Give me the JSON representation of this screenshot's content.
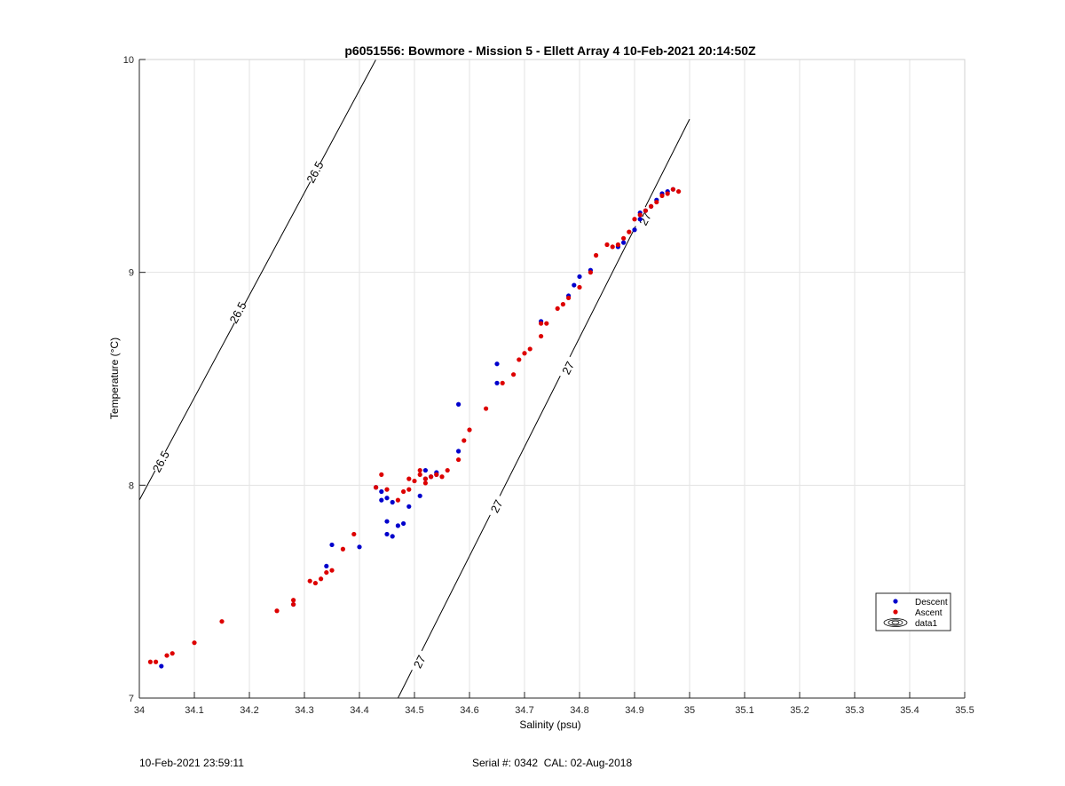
{
  "footer": {
    "timestamp": "10-Feb-2021 23:59:11",
    "serial_cal": "Serial #: 0342  CAL: 02-Aug-2018"
  },
  "chart_data": {
    "type": "scatter",
    "title": "p6051556: Bowmore - Mission 5 - Ellett Array 4 10-Feb-2021 20:14:50Z",
    "xlabel": "Salinity (psu)",
    "ylabel": "Temperature (°C)",
    "xlim": [
      34,
      35.5
    ],
    "ylim": [
      7,
      10
    ],
    "x_ticks": [
      "34",
      "34.1",
      "34.2",
      "34.3",
      "34.4",
      "34.5",
      "34.6",
      "34.7",
      "34.8",
      "34.9",
      "35",
      "35.1",
      "35.2",
      "35.3",
      "35.4",
      "35.5"
    ],
    "y_ticks": [
      "7",
      "8",
      "9",
      "10"
    ],
    "grid": true,
    "legend_position": "bottom-right",
    "colors": {
      "descent": "#0000cc",
      "ascent": "#dd0000",
      "contour": "#000000"
    },
    "series": [
      {
        "name": "Descent",
        "x": [
          34.04,
          34.28,
          34.34,
          34.35,
          34.4,
          34.43,
          34.44,
          34.44,
          34.45,
          34.45,
          34.45,
          34.46,
          34.46,
          34.47,
          34.48,
          34.49,
          34.51,
          34.52,
          34.52,
          34.53,
          34.54,
          34.54,
          34.58,
          34.58,
          34.65,
          34.65,
          34.73,
          34.78,
          34.79,
          34.8,
          34.82,
          34.87,
          34.88,
          34.9,
          34.91,
          34.91,
          34.92,
          34.93,
          34.94,
          34.95,
          34.96,
          34.97
        ],
        "y": [
          7.15,
          7.44,
          7.62,
          7.72,
          7.71,
          7.99,
          7.97,
          7.93,
          7.94,
          7.83,
          7.77,
          7.76,
          7.92,
          7.81,
          7.82,
          7.9,
          7.95,
          8.07,
          8.03,
          8.04,
          8.05,
          8.06,
          8.38,
          8.16,
          8.57,
          8.48,
          8.77,
          8.89,
          8.94,
          8.98,
          9.01,
          9.12,
          9.14,
          9.2,
          9.25,
          9.28,
          9.29,
          9.31,
          9.34,
          9.37,
          9.38,
          9.39
        ]
      },
      {
        "name": "Ascent",
        "x": [
          34.02,
          34.03,
          34.05,
          34.06,
          34.1,
          34.15,
          34.25,
          34.28,
          34.28,
          34.31,
          34.32,
          34.33,
          34.34,
          34.35,
          34.37,
          34.39,
          34.43,
          34.44,
          34.45,
          34.47,
          34.48,
          34.49,
          34.49,
          34.5,
          34.51,
          34.51,
          34.52,
          34.52,
          34.53,
          34.54,
          34.55,
          34.56,
          34.58,
          34.59,
          34.6,
          34.63,
          34.66,
          34.68,
          34.69,
          34.7,
          34.71,
          34.73,
          34.73,
          34.74,
          34.76,
          34.77,
          34.78,
          34.8,
          34.82,
          34.83,
          34.85,
          34.86,
          34.87,
          34.88,
          34.89,
          34.9,
          34.91,
          34.92,
          34.93,
          34.94,
          34.95,
          34.96,
          34.97,
          34.98
        ],
        "y": [
          7.17,
          7.17,
          7.2,
          7.21,
          7.26,
          7.36,
          7.41,
          7.44,
          7.46,
          7.55,
          7.54,
          7.56,
          7.59,
          7.6,
          7.7,
          7.77,
          7.99,
          8.05,
          7.98,
          7.93,
          7.97,
          7.98,
          8.03,
          8.02,
          8.05,
          8.07,
          8.01,
          8.03,
          8.04,
          8.05,
          8.04,
          8.07,
          8.12,
          8.21,
          8.26,
          8.36,
          8.48,
          8.52,
          8.59,
          8.62,
          8.64,
          8.7,
          8.76,
          8.76,
          8.83,
          8.85,
          8.88,
          8.93,
          9.0,
          9.08,
          9.13,
          9.12,
          9.13,
          9.16,
          9.19,
          9.25,
          9.27,
          9.29,
          9.31,
          9.33,
          9.36,
          9.37,
          9.39,
          9.38
        ]
      },
      {
        "name": "data1"
      }
    ],
    "contours": [
      {
        "level": "26.5",
        "points": [
          [
            34.0,
            7.93
          ],
          [
            34.43,
            10.0
          ]
        ],
        "labels": [
          {
            "text": "26.5",
            "x": 34.04,
            "y": 8.11
          },
          {
            "text": "26.5",
            "x": 34.18,
            "y": 8.81
          },
          {
            "text": "26.5",
            "x": 34.32,
            "y": 9.47
          }
        ]
      },
      {
        "level": "27",
        "points": [
          [
            34.47,
            7.0
          ],
          [
            35.0,
            9.72
          ]
        ],
        "labels": [
          {
            "text": "27",
            "x": 34.51,
            "y": 7.17
          },
          {
            "text": "27",
            "x": 34.65,
            "y": 7.9
          },
          {
            "text": "27",
            "x": 34.78,
            "y": 8.55
          },
          {
            "text": "27",
            "x": 34.92,
            "y": 9.25
          }
        ]
      }
    ]
  }
}
